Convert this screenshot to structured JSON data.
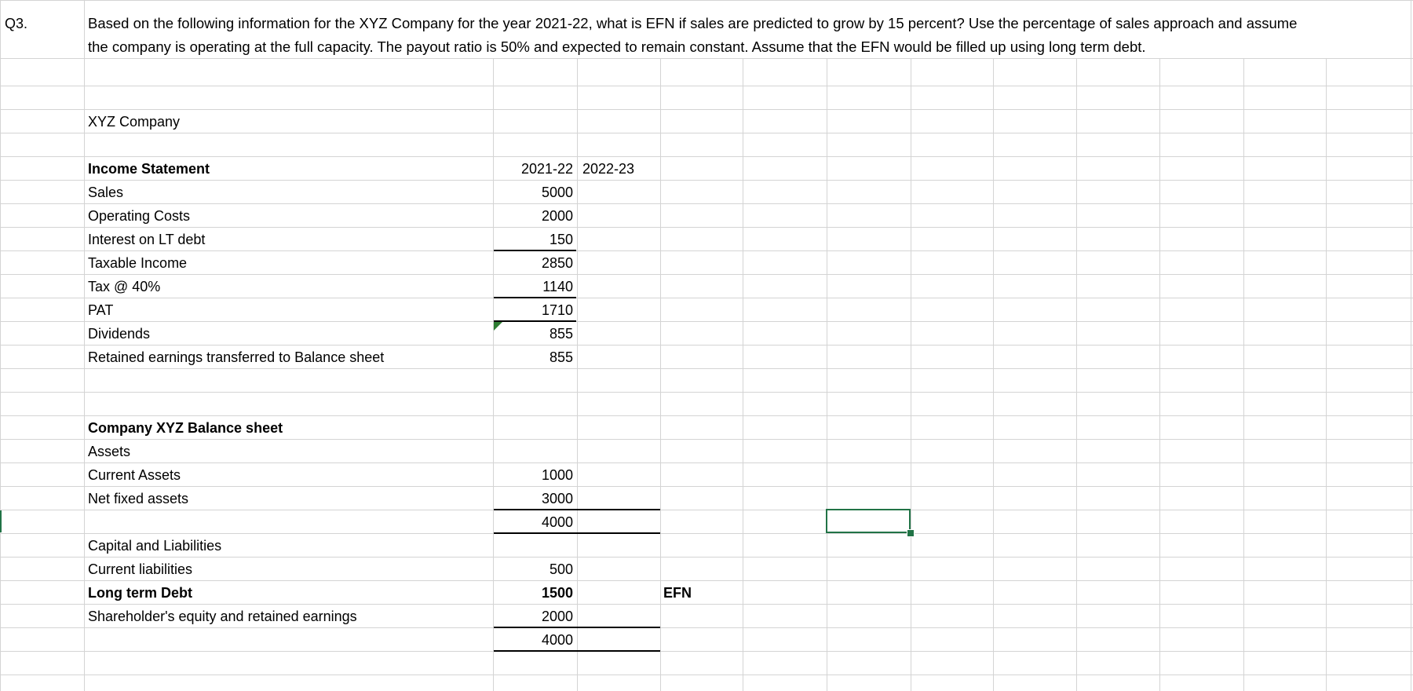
{
  "question": {
    "label": "Q3.",
    "line1": "Based on the following information for the XYZ Company for the year 2021-22, what is EFN if sales are predicted to grow by 15 percent? Use the percentage of sales approach and assume",
    "line2": "the company is operating at the full capacity. The payout ratio is 50% and expected to remain constant. Assume that the EFN would be filled up using long term debt."
  },
  "company_name": "XYZ Company",
  "income_statement": {
    "heading": "Income Statement",
    "year_1": "2021-22",
    "year_2": "2022-23",
    "rows": [
      {
        "label": "Sales",
        "value": "5000"
      },
      {
        "label": "Operating Costs",
        "value": "2000"
      },
      {
        "label": "Interest on LT debt",
        "value": "150"
      },
      {
        "label": "Taxable Income",
        "value": "2850"
      },
      {
        "label": "Tax @ 40%",
        "value": "1140"
      },
      {
        "label": "PAT",
        "value": "1710"
      },
      {
        "label": "Dividends",
        "value": "855"
      },
      {
        "label": "Retained earnings transferred to Balance sheet",
        "value": "855"
      }
    ]
  },
  "balance_sheet": {
    "heading": "Company XYZ Balance sheet",
    "assets_heading": "Assets",
    "current_assets": {
      "label": "Current Assets",
      "value": "1000"
    },
    "net_fixed_assets": {
      "label": "Net fixed assets",
      "value": "3000"
    },
    "total_assets": "4000",
    "cl_heading": "Capital and Liabilities",
    "current_liabilities": {
      "label": "Current liabilities",
      "value": "500"
    },
    "long_term_debt": {
      "label": "Long term Debt",
      "value": "1500"
    },
    "equity": {
      "label": "Shareholder's equity and retained earnings",
      "value": "2000"
    },
    "total_cl": "4000",
    "efn_label": "EFN"
  },
  "colors": {
    "gridline": "#d4d4d4",
    "selection": "#217346"
  }
}
